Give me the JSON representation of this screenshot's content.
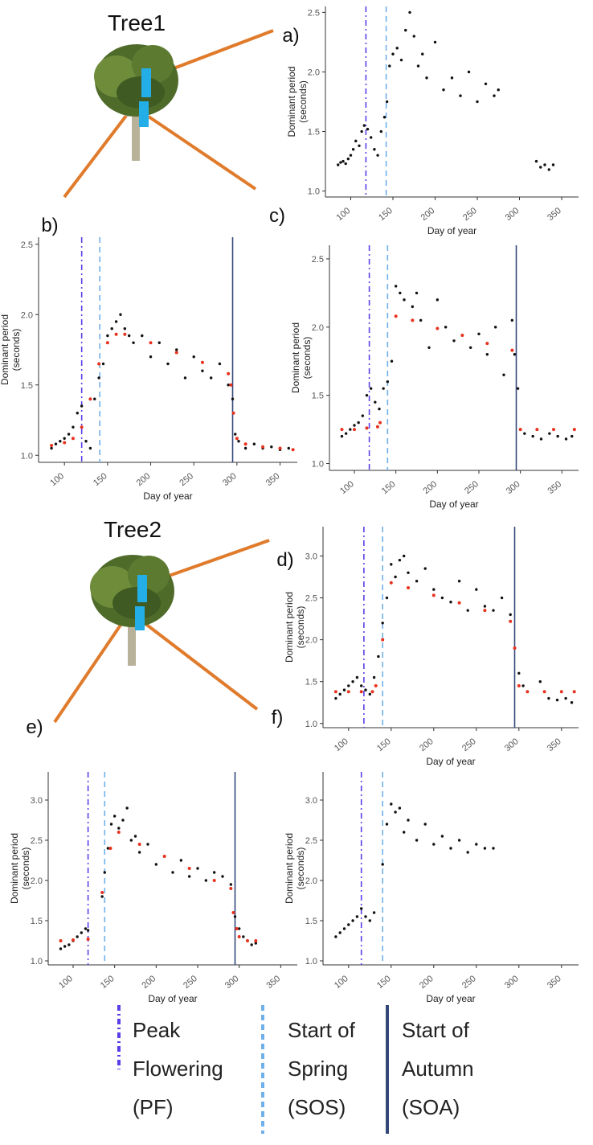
{
  "figure": {
    "trees": [
      "Tree1",
      "Tree2"
    ]
  },
  "legend": [
    {
      "lines": [
        "Peak",
        "Flowering",
        "(PF)"
      ],
      "color": "#5a3ee8",
      "dash": "dashdot"
    },
    {
      "lines": [
        "Start of",
        "Spring",
        "(SOS)"
      ],
      "color": "#6fb0ea",
      "dash": "dashed"
    },
    {
      "lines": [
        "Start of",
        "Autumn",
        "(SOA)"
      ],
      "color": "#34497a",
      "dash": "solid"
    }
  ],
  "chart_data": [
    {
      "type": "scatter",
      "panel": "a)",
      "xlabel": "Day of year",
      "ylabel": [
        "Dominant period",
        "(seconds)"
      ],
      "xlim": [
        70,
        370
      ],
      "ylim": [
        0.95,
        2.55
      ],
      "xticks": [
        100,
        150,
        200,
        250,
        300,
        350
      ],
      "yticks": [
        {
          "value": 1.0,
          "label": "1.0"
        },
        {
          "value": 1.5,
          "label": "1.5"
        },
        {
          "value": 2.0,
          "label": "2.0"
        },
        {
          "value": 2.5,
          "label": "2.5"
        }
      ],
      "vlines": [
        118,
        142,
        null
      ],
      "series": [
        {
          "color": "#111111",
          "x": [
            85,
            88,
            91,
            94,
            97,
            100,
            103,
            106,
            110,
            113,
            116,
            120,
            124,
            128,
            132,
            136,
            140,
            143,
            146,
            150,
            155,
            160,
            165,
            170,
            175,
            180,
            185,
            190,
            200,
            210,
            220,
            230,
            240,
            250,
            260,
            270,
            275,
            320,
            325,
            330,
            335,
            340
          ],
          "values": [
            1.22,
            1.24,
            1.25,
            1.23,
            1.27,
            1.3,
            1.35,
            1.42,
            1.38,
            1.5,
            1.55,
            1.52,
            1.45,
            1.35,
            1.3,
            1.5,
            1.62,
            1.75,
            2.05,
            2.15,
            2.2,
            2.1,
            2.35,
            2.5,
            2.3,
            2.05,
            2.15,
            1.95,
            2.25,
            1.85,
            1.95,
            1.8,
            2.0,
            1.75,
            1.9,
            1.8,
            1.85,
            1.25,
            1.2,
            1.22,
            1.18,
            1.22
          ]
        }
      ]
    },
    {
      "type": "scatter",
      "panel": "b)",
      "xlabel": "Day of year",
      "ylabel": [
        "Dominant period",
        "(seconds)"
      ],
      "xlim": [
        70,
        370
      ],
      "ylim": [
        0.95,
        2.55
      ],
      "xticks": [
        100,
        150,
        200,
        250,
        300,
        350
      ],
      "yticks": [
        {
          "value": 1.0,
          "label": "1.0"
        },
        {
          "value": 1.5,
          "label": "1.5"
        },
        {
          "value": 2.0,
          "label": "2.0"
        },
        {
          "value": 2.5,
          "label": "2.5"
        }
      ],
      "vlines": [
        120,
        141,
        295
      ],
      "series": [
        {
          "color": "#111111",
          "x": [
            85,
            90,
            95,
            100,
            105,
            110,
            115,
            120,
            125,
            130,
            135,
            140,
            145,
            150,
            155,
            160,
            165,
            170,
            175,
            180,
            190,
            200,
            210,
            220,
            230,
            240,
            250,
            260,
            270,
            280,
            290,
            295,
            298,
            302,
            310,
            320,
            330,
            340,
            350,
            360
          ],
          "values": [
            1.05,
            1.08,
            1.1,
            1.12,
            1.15,
            1.2,
            1.3,
            1.35,
            1.1,
            1.05,
            1.4,
            1.55,
            1.65,
            1.85,
            1.9,
            1.95,
            2.0,
            1.9,
            1.85,
            1.8,
            1.85,
            1.7,
            1.8,
            1.65,
            1.75,
            1.55,
            1.7,
            1.6,
            1.55,
            1.65,
            1.5,
            1.4,
            1.15,
            1.1,
            1.05,
            1.08,
            1.05,
            1.06,
            1.04,
            1.05
          ]
        },
        {
          "color": "#e8321e",
          "x": [
            85,
            100,
            110,
            120,
            130,
            140,
            150,
            160,
            170,
            200,
            230,
            260,
            290,
            293,
            296,
            300,
            310,
            330,
            350,
            365
          ],
          "values": [
            1.07,
            1.09,
            1.12,
            1.2,
            1.4,
            1.65,
            1.8,
            1.86,
            1.86,
            1.8,
            1.73,
            1.66,
            1.58,
            1.5,
            1.3,
            1.12,
            1.08,
            1.06,
            1.05,
            1.04
          ]
        }
      ]
    },
    {
      "type": "scatter",
      "panel": "c)",
      "xlabel": "Day of year",
      "ylabel": [
        "Dominant period",
        "(seconds)"
      ],
      "xlim": [
        70,
        370
      ],
      "ylim": [
        0.95,
        2.6
      ],
      "xticks": [
        100,
        150,
        200,
        250,
        300,
        350
      ],
      "yticks": [
        {
          "value": 1.0,
          "label": "1.0"
        },
        {
          "value": 1.5,
          "label": "1.5"
        },
        {
          "value": 2.0,
          "label": "2.0"
        },
        {
          "value": 2.5,
          "label": "2.5"
        }
      ],
      "vlines": [
        118,
        140,
        295
      ],
      "series": [
        {
          "color": "#111111",
          "x": [
            85,
            90,
            95,
            100,
            105,
            110,
            115,
            120,
            125,
            130,
            135,
            140,
            145,
            150,
            155,
            160,
            170,
            175,
            180,
            190,
            200,
            210,
            220,
            240,
            250,
            260,
            270,
            280,
            290,
            293,
            297,
            305,
            315,
            325,
            335,
            345,
            355,
            362
          ],
          "values": [
            1.2,
            1.22,
            1.25,
            1.28,
            1.3,
            1.35,
            1.5,
            1.55,
            1.45,
            1.4,
            1.55,
            1.6,
            1.75,
            2.3,
            2.25,
            2.2,
            2.15,
            2.25,
            2.05,
            1.85,
            2.2,
            2.0,
            1.9,
            1.85,
            1.95,
            1.8,
            2.0,
            1.65,
            2.05,
            1.8,
            1.55,
            1.22,
            1.2,
            1.18,
            1.22,
            1.2,
            1.18,
            1.2
          ]
        },
        {
          "color": "#e8321e",
          "x": [
            85,
            100,
            115,
            128,
            131,
            150,
            170,
            200,
            230,
            260,
            290,
            300,
            320,
            340,
            365
          ],
          "values": [
            1.25,
            1.25,
            1.26,
            1.27,
            1.3,
            2.08,
            2.05,
            1.99,
            1.94,
            1.88,
            1.83,
            1.25,
            1.25,
            1.25,
            1.25
          ]
        }
      ]
    },
    {
      "type": "scatter",
      "panel": "d)",
      "xlabel": "Day of year",
      "ylabel": [
        "Dominant period",
        "(seconds)"
      ],
      "xlim": [
        70,
        370
      ],
      "ylim": [
        0.95,
        3.35
      ],
      "xticks": [
        100,
        150,
        200,
        250,
        300,
        350
      ],
      "yticks": [
        {
          "value": 1.0,
          "label": "1.0"
        },
        {
          "value": 1.5,
          "label": "1.5"
        },
        {
          "value": 2.0,
          "label": "2.0"
        },
        {
          "value": 2.5,
          "label": "2.5"
        },
        {
          "value": 3.0,
          "label": "3.0"
        }
      ],
      "vlines": [
        118,
        140,
        295
      ],
      "series": [
        {
          "color": "#111111",
          "x": [
            85,
            90,
            95,
            100,
            105,
            110,
            115,
            120,
            125,
            130,
            135,
            140,
            145,
            150,
            155,
            160,
            165,
            170,
            180,
            190,
            200,
            210,
            220,
            230,
            240,
            250,
            260,
            270,
            280,
            290,
            295,
            300,
            305,
            325,
            335,
            345,
            355,
            362
          ],
          "values": [
            1.3,
            1.35,
            1.4,
            1.45,
            1.5,
            1.55,
            1.45,
            1.4,
            1.35,
            1.55,
            1.8,
            2.2,
            2.5,
            2.9,
            2.75,
            2.95,
            3.0,
            2.8,
            2.7,
            2.85,
            2.6,
            2.5,
            2.45,
            2.7,
            2.35,
            2.6,
            2.4,
            2.35,
            2.5,
            2.3,
            1.9,
            1.6,
            1.45,
            1.5,
            1.3,
            1.28,
            1.3,
            1.25
          ]
        },
        {
          "color": "#e8321e",
          "x": [
            85,
            100,
            115,
            128,
            132,
            140,
            150,
            170,
            200,
            230,
            260,
            290,
            295,
            300,
            310,
            330,
            350,
            365
          ],
          "values": [
            1.38,
            1.38,
            1.38,
            1.38,
            1.45,
            2.0,
            2.68,
            2.62,
            2.53,
            2.44,
            2.35,
            2.22,
            1.9,
            1.45,
            1.38,
            1.38,
            1.38,
            1.38
          ]
        }
      ]
    },
    {
      "type": "scatter",
      "panel": "e)",
      "xlabel": "Day of year",
      "ylabel": [
        "Dominant period",
        "(seconds)"
      ],
      "xlim": [
        70,
        370
      ],
      "ylim": [
        0.95,
        3.35
      ],
      "xticks": [
        100,
        150,
        200,
        250,
        300,
        350
      ],
      "yticks": [
        {
          "value": 1.0,
          "label": "1.0"
        },
        {
          "value": 1.5,
          "label": "1.5"
        },
        {
          "value": 2.0,
          "label": "2.0"
        },
        {
          "value": 2.5,
          "label": "2.5"
        },
        {
          "value": 3.0,
          "label": "3.0"
        }
      ],
      "vlines": [
        118,
        138,
        295
      ],
      "series": [
        {
          "color": "#111111",
          "x": [
            85,
            90,
            95,
            100,
            105,
            110,
            115,
            118,
            135,
            138,
            142,
            146,
            150,
            155,
            160,
            165,
            170,
            175,
            180,
            190,
            200,
            210,
            220,
            230,
            240,
            250,
            260,
            270,
            280,
            290,
            295,
            300,
            305,
            310,
            315,
            320
          ],
          "values": [
            1.15,
            1.18,
            1.2,
            1.25,
            1.3,
            1.35,
            1.4,
            1.38,
            1.8,
            2.1,
            2.4,
            2.7,
            2.8,
            2.65,
            2.75,
            2.9,
            2.5,
            2.55,
            2.35,
            2.45,
            2.2,
            2.3,
            2.1,
            2.25,
            2.05,
            2.15,
            2.0,
            2.1,
            2.05,
            1.95,
            1.55,
            1.4,
            1.3,
            1.25,
            1.2,
            1.22
          ]
        },
        {
          "color": "#e8321e",
          "x": [
            85,
            100,
            118,
            135,
            145,
            155,
            180,
            210,
            240,
            270,
            290,
            293,
            297,
            300,
            310,
            320
          ],
          "values": [
            1.25,
            1.26,
            1.27,
            1.85,
            2.4,
            2.6,
            2.45,
            2.3,
            2.15,
            2.0,
            1.9,
            1.6,
            1.4,
            1.3,
            1.25,
            1.25
          ]
        }
      ]
    },
    {
      "type": "scatter",
      "panel": "f)",
      "xlabel": "Day of year",
      "ylabel": [
        "Dominant period",
        "(seconds)"
      ],
      "xlim": [
        70,
        370
      ],
      "ylim": [
        0.95,
        3.35
      ],
      "xticks": [
        100,
        150,
        200,
        250,
        300,
        350
      ],
      "yticks": [
        {
          "value": 1.0,
          "label": "1.0"
        },
        {
          "value": 1.5,
          "label": "1.5"
        },
        {
          "value": 2.0,
          "label": "2.0"
        },
        {
          "value": 2.5,
          "label": "2.5"
        },
        {
          "value": 3.0,
          "label": "3.0"
        }
      ],
      "vlines": [
        115,
        140,
        null
      ],
      "series": [
        {
          "color": "#111111",
          "x": [
            85,
            90,
            95,
            100,
            105,
            110,
            115,
            120,
            125,
            130,
            140,
            145,
            150,
            155,
            160,
            165,
            170,
            180,
            190,
            200,
            210,
            220,
            230,
            240,
            250,
            260,
            270
          ],
          "values": [
            1.3,
            1.35,
            1.4,
            1.45,
            1.5,
            1.55,
            1.65,
            1.55,
            1.5,
            1.6,
            2.2,
            2.7,
            2.95,
            2.85,
            2.9,
            2.6,
            2.75,
            2.5,
            2.7,
            2.45,
            2.55,
            2.4,
            2.5,
            2.35,
            2.45,
            2.4,
            2.4
          ]
        }
      ]
    }
  ]
}
